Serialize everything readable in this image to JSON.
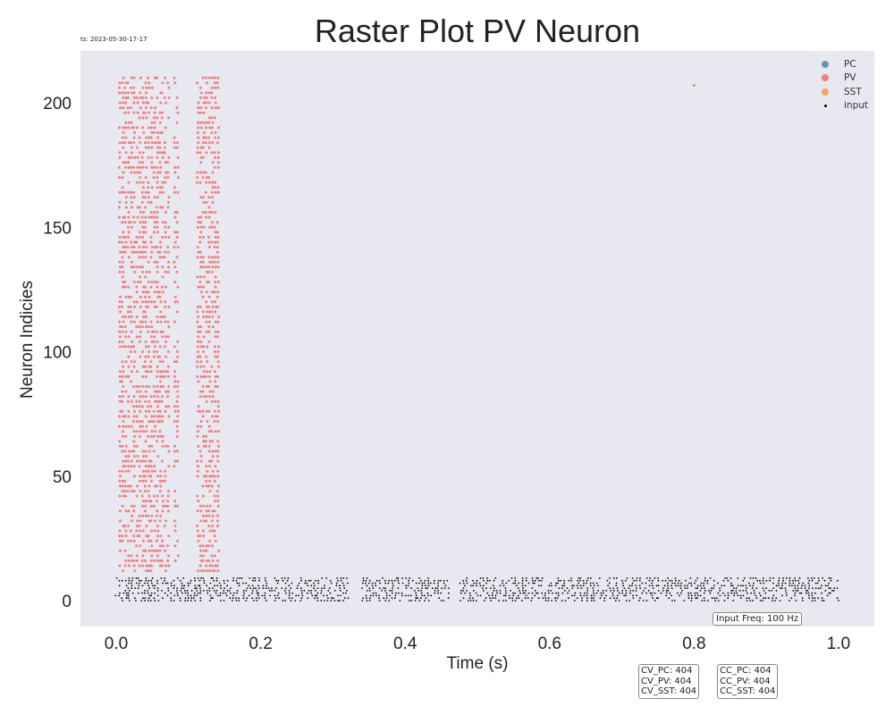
{
  "timestamp": "ts: 2023-05-30-17-17",
  "chart_data": {
    "type": "scatter",
    "title": "Raster Plot PV Neuron",
    "xlabel": "Time (s)",
    "ylabel": "Neuron Indicies",
    "xlim": [
      -0.05,
      1.05
    ],
    "ylim": [
      -10,
      220
    ],
    "xticks": [
      0.0,
      0.2,
      0.4,
      0.6,
      0.8,
      1.0
    ],
    "xtick_labels": [
      "0.0",
      "0.2",
      "0.4",
      "0.6",
      "0.8",
      "1.0"
    ],
    "yticks": [
      0,
      50,
      100,
      150,
      200
    ],
    "ytick_labels": [
      "0",
      "50",
      "100",
      "150",
      "200"
    ],
    "grid": false,
    "legend_position": "top-right",
    "background": "#e8e8f1",
    "series": [
      {
        "name": "PC",
        "color": "#5f9ea0",
        "marker": "circle",
        "neurons": [],
        "spike_times": []
      },
      {
        "name": "PV",
        "color": "#f08080",
        "marker": "circle",
        "neurons": [
          12,
          210
        ],
        "bursts": [
          {
            "t_start": 0.005,
            "t_end": 0.062,
            "note": "dense"
          },
          {
            "t_start": 0.064,
            "t_end": 0.073,
            "note": "sparse"
          },
          {
            "t_start": 0.081,
            "t_end": 0.087,
            "note": "sparse"
          },
          {
            "t_start": 0.113,
            "t_end": 0.143,
            "note": "dense"
          }
        ],
        "isolated_spikes": [
          {
            "t": 0.8,
            "neuron": 207
          }
        ]
      },
      {
        "name": "SST",
        "color": "#f4a460",
        "marker": "circle",
        "neurons": [],
        "spike_times": []
      },
      {
        "name": "input",
        "color": "#000000",
        "marker": "dot",
        "neurons": [
          0,
          9
        ],
        "t_range": [
          0.0,
          1.0
        ],
        "gaps": [
          [
            0.32,
            0.34
          ],
          [
            0.46,
            0.475
          ]
        ]
      }
    ]
  },
  "annotations": {
    "input_freq": "Input Freq: 100 Hz",
    "cv": [
      "CV_PC: 404",
      "CV_PV: 404",
      "CV_SST: 404"
    ],
    "cc": [
      "CC_PC: 404",
      "CC_PV: 404",
      "CC_SST: 404"
    ]
  }
}
